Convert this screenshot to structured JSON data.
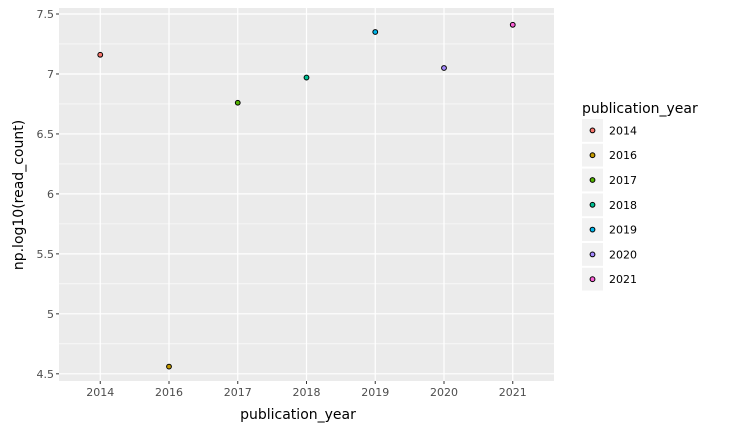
{
  "chart_data": {
    "type": "scatter",
    "xlabel": "publication_year",
    "ylabel": "np.log10(read_count)",
    "x_categories": [
      "2014",
      "2016",
      "2017",
      "2018",
      "2019",
      "2020",
      "2021"
    ],
    "y_ticks": [
      4.5,
      5,
      5.5,
      6,
      6.5,
      7,
      7.5
    ],
    "y_tick_labels": [
      "4.5",
      "5",
      "5.5",
      "6",
      "6.5",
      "7",
      "7.5"
    ],
    "ylim": [
      4.44,
      7.55
    ],
    "grid": true,
    "legend": {
      "title": "publication_year",
      "placement": "right"
    },
    "points": [
      {
        "x": "2014",
        "y": 7.16,
        "color": "#F8766D"
      },
      {
        "x": "2016",
        "y": 4.56,
        "color": "#C49A00"
      },
      {
        "x": "2017",
        "y": 6.76,
        "color": "#53B400"
      },
      {
        "x": "2018",
        "y": 6.97,
        "color": "#00C094"
      },
      {
        "x": "2019",
        "y": 7.35,
        "color": "#00B6EB"
      },
      {
        "x": "2020",
        "y": 7.05,
        "color": "#A58AFF"
      },
      {
        "x": "2021",
        "y": 7.41,
        "color": "#FB61D7"
      }
    ],
    "colors": {
      "panel_background": "#EBEBEB",
      "grid": "#FFFFFF",
      "point_stroke": "#000000"
    }
  }
}
